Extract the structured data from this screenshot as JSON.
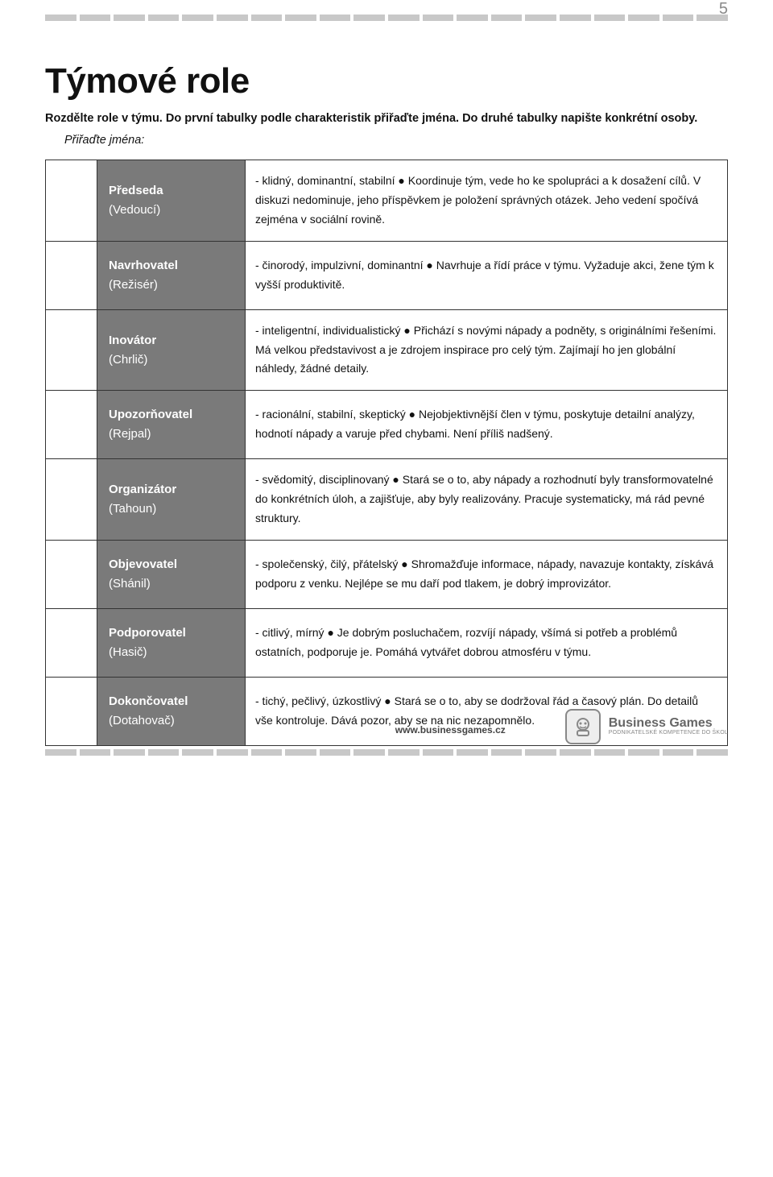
{
  "page_number": "5",
  "title": "Týmové role",
  "intro": "Rozdělte role v týmu. Do první tabulky podle charakteristik přiřaďte jména. Do druhé tabulky napište konkrétní osoby.",
  "subhead": "Přiřaďte jména:",
  "stripe": {
    "segments": 20,
    "color": "#c8c8c8"
  },
  "roles": [
    {
      "name": "Předseda",
      "sub": "(Vedoucí)",
      "desc": "- klidný, dominantní, stabilní ● Koordinuje tým, vede ho ke spolupráci a k dosažení cílů. V diskuzi nedominuje, jeho příspěvkem je položení správných otázek. Jeho vedení spočívá zejména v sociální rovině."
    },
    {
      "name": "Navrhovatel",
      "sub": "(Režisér)",
      "desc": "- činorodý, impulzivní, dominantní ● Navrhuje a řídí práce v týmu. Vyžaduje akci, žene tým k vyšší produktivitě."
    },
    {
      "name": "Inovátor",
      "sub": "(Chrlič)",
      "desc": "- inteligentní, individualistický ● Přichází s novými nápady a podněty, s originálními řešeními. Má velkou představivost a je zdrojem inspirace pro celý tým. Zajímají ho jen globální náhledy, žádné detaily."
    },
    {
      "name": "Upozorňovatel",
      "sub": "(Rejpal)",
      "desc": "- racionální, stabilní, skeptický ● Nejobjektivnější člen v týmu, poskytuje detailní analýzy, hodnotí nápady a varuje před chybami. Není příliš nadšený."
    },
    {
      "name": "Organizátor",
      "sub": "(Tahoun)",
      "desc": "- svědomitý, disciplinovaný ● Stará se o to, aby nápady a rozhodnutí byly transformovatelné do konkrétních úloh, a zajišťuje, aby byly realizovány. Pracuje systematicky, má rád pevné struktury."
    },
    {
      "name": "Objevovatel",
      "sub": "(Shánil)",
      "desc": "- společenský, čilý, přátelský ● Shromažďuje informace, nápady, navazuje kontakty, získává podporu z venku. Nejlépe se mu daří pod tlakem, je dobrý improvizátor."
    },
    {
      "name": "Podporovatel",
      "sub": "(Hasič)",
      "desc": "- citlivý, mírný ● Je dobrým posluchačem, rozvíjí nápady, všímá si potřeb a problémů ostatních, podporuje je. Pomáhá vytvářet dobrou atmosféru v týmu."
    },
    {
      "name": "Dokončovatel",
      "sub": "(Dotahovač)",
      "desc": "- tichý, pečlivý, úzkostlivý ● Stará se o to, aby se dodržoval řád a časový plán. Do detailů vše kontroluje. Dává pozor, aby se na nic nezapomnělo."
    }
  ],
  "footer": {
    "url": "www.businessgames.cz",
    "brand": "Business Games",
    "tagline": "PODNIKATELSKÉ KOMPETENCE DO ŠKOL"
  }
}
